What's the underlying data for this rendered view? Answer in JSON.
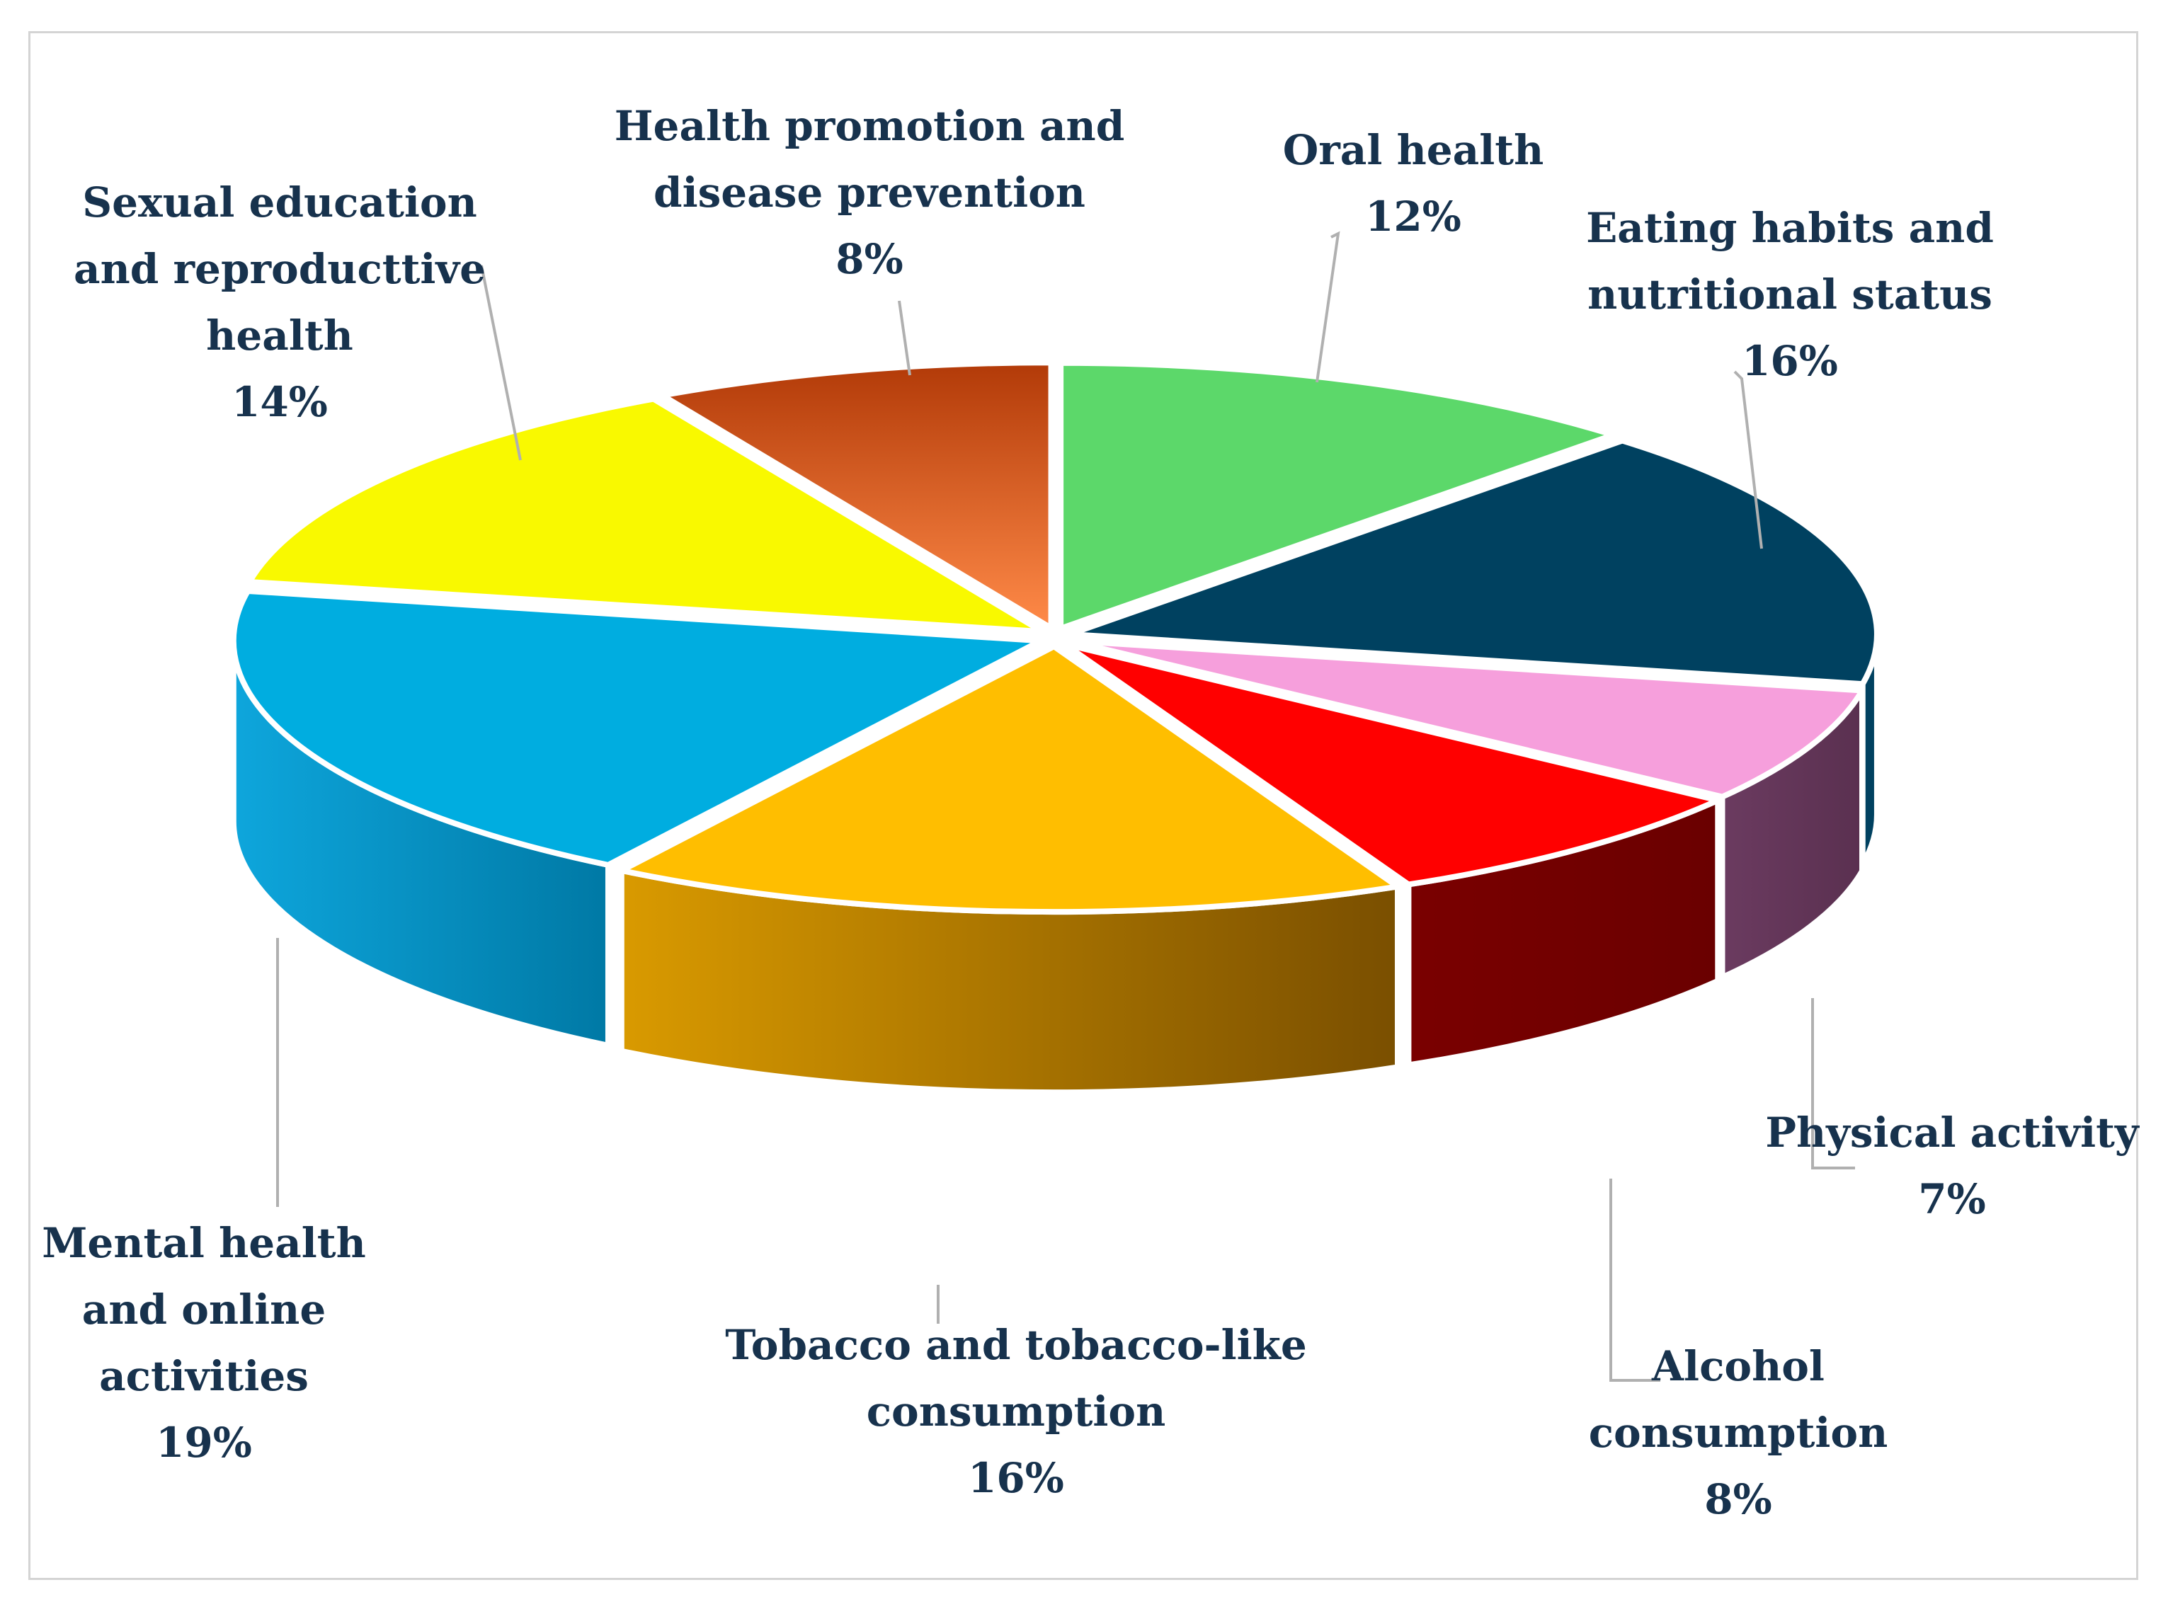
{
  "chart_data": {
    "type": "pie",
    "style": "3d-exploded",
    "title": "",
    "unit": "%",
    "slices": [
      {
        "label": "Oral health",
        "value": 12,
        "display": "12%",
        "color": "#5cd86a"
      },
      {
        "label": "Eating habits and nutritional status",
        "value": 16,
        "display": "16%",
        "color": "#004160"
      },
      {
        "label": "Physical activity",
        "value": 7,
        "display": "7%",
        "color": "#f69fdc"
      },
      {
        "label": "Alcohol consumption",
        "value": 8,
        "display": "8%",
        "color": "#ff0000"
      },
      {
        "label": "Tobacco and tobacco-like consumption",
        "value": 16,
        "display": "16%",
        "color": "#ffbe00"
      },
      {
        "label": "Mental health and online activities",
        "value": 19,
        "display": "19%",
        "color": "#00ade0"
      },
      {
        "label": "Sexual education and reproducttive health",
        "value": 14,
        "display": "14%",
        "color": "#f9f900"
      },
      {
        "label": "Health promotion and disease prevention",
        "value": 8,
        "display": "8%",
        "color": "#e6622a"
      }
    ]
  },
  "labels": {
    "oral_health": [
      "Oral health",
      "12%"
    ],
    "eating_habits": [
      "Eating habits and",
      "nutritional status",
      "16%"
    ],
    "physical_activity": [
      "Physical activity",
      "7%"
    ],
    "alcohol": [
      "Alcohol",
      "consumption",
      "8%"
    ],
    "tobacco": [
      "Tobacco and tobacco-like",
      "consumption",
      "16%"
    ],
    "mental_health": [
      "Mental health",
      "and online",
      "activities",
      "19%"
    ],
    "sexual_education": [
      "Sexual education",
      "and reproducttive",
      "health",
      "14%"
    ],
    "health_promotion": [
      "Health promotion and",
      "disease prevention",
      "8%"
    ]
  }
}
